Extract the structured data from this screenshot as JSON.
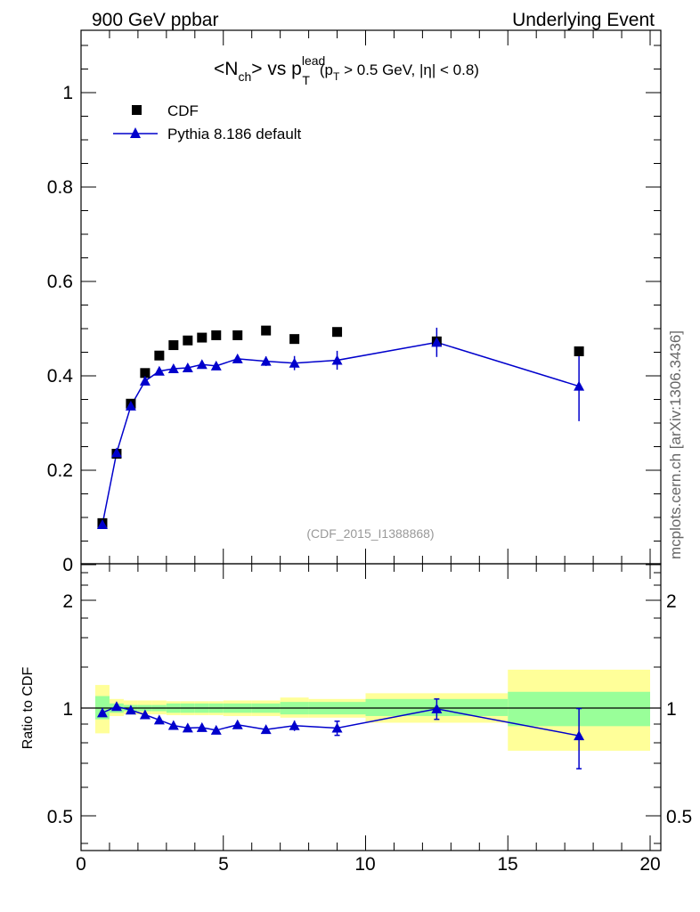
{
  "header": {
    "left": "900 GeV ppbar",
    "right": "Underlying Event",
    "side_label": "mcplots.cern.ch [arXiv:1306.3436]",
    "analysis_label": "(CDF_2015_I1388868)"
  },
  "colors": {
    "data": "#000000",
    "mc": "#0000cc",
    "band_inner": "#99ff99",
    "band_outer": "#ffff99"
  },
  "chart_data": [
    {
      "type": "scatter",
      "title_parts": {
        "lhs_pre": "<N",
        "lhs_sub": "ch",
        "lhs_post": "> vs p",
        "pt_sup": "lead",
        "pt_sub": "T",
        "cut_open": "(p",
        "cut_sub": "T",
        "cut_rest": " > 0.5 GeV, |η| < 0.8)"
      },
      "xlim": [
        0,
        20
      ],
      "ylim": [
        0,
        1.1
      ],
      "yticks": [
        "0",
        "0.2",
        "0.4",
        "0.6",
        "0.8",
        "1"
      ],
      "legend": {
        "placement": "top-left",
        "entries": [
          "CDF",
          "Pythia 8.186 default"
        ]
      },
      "series": [
        {
          "name": "CDF",
          "marker": "square",
          "points": [
            {
              "x": 0.75,
              "y": 0.088
            },
            {
              "x": 1.25,
              "y": 0.235
            },
            {
              "x": 1.75,
              "y": 0.341
            },
            {
              "x": 2.25,
              "y": 0.406
            },
            {
              "x": 2.75,
              "y": 0.443
            },
            {
              "x": 3.25,
              "y": 0.465
            },
            {
              "x": 3.75,
              "y": 0.475
            },
            {
              "x": 4.25,
              "y": 0.481
            },
            {
              "x": 4.75,
              "y": 0.486
            },
            {
              "x": 5.5,
              "y": 0.486
            },
            {
              "x": 6.5,
              "y": 0.496
            },
            {
              "x": 7.5,
              "y": 0.478
            },
            {
              "x": 9.0,
              "y": 0.493
            },
            {
              "x": 12.5,
              "y": 0.473
            },
            {
              "x": 17.5,
              "y": 0.452
            }
          ]
        },
        {
          "name": "Pythia 8.186 default",
          "marker": "triangle",
          "points": [
            {
              "x": 0.75,
              "y": 0.085,
              "err": 0.002
            },
            {
              "x": 1.25,
              "y": 0.237,
              "err": 0.002
            },
            {
              "x": 1.75,
              "y": 0.336,
              "err": 0.003
            },
            {
              "x": 2.25,
              "y": 0.389,
              "err": 0.004
            },
            {
              "x": 2.75,
              "y": 0.41,
              "err": 0.004
            },
            {
              "x": 3.25,
              "y": 0.415,
              "err": 0.005
            },
            {
              "x": 3.75,
              "y": 0.417,
              "err": 0.006
            },
            {
              "x": 4.25,
              "y": 0.424,
              "err": 0.006
            },
            {
              "x": 4.75,
              "y": 0.421,
              "err": 0.007
            },
            {
              "x": 5.5,
              "y": 0.436,
              "err": 0.007
            },
            {
              "x": 6.5,
              "y": 0.431,
              "err": 0.01
            },
            {
              "x": 7.5,
              "y": 0.427,
              "err": 0.015
            },
            {
              "x": 9.0,
              "y": 0.433,
              "err": 0.02
            },
            {
              "x": 12.5,
              "y": 0.471,
              "err": 0.031
            },
            {
              "x": 17.5,
              "y": 0.378,
              "err": 0.074
            }
          ]
        }
      ]
    },
    {
      "type": "scatter",
      "ylabel": "Ratio to CDF",
      "xlim": [
        0,
        20
      ],
      "ylim": [
        0.4,
        2.35
      ],
      "yscale": "log",
      "xticks": [
        "0",
        "5",
        "10",
        "15",
        "20"
      ],
      "yticks": [
        "0.5",
        "1",
        "2"
      ],
      "bands": [
        {
          "x0": 0.5,
          "x1": 1.0,
          "inner": [
            0.93,
            1.08
          ],
          "outer": [
            0.85,
            1.16
          ]
        },
        {
          "x0": 1.0,
          "x1": 1.5,
          "inner": [
            0.97,
            1.03
          ],
          "outer": [
            0.95,
            1.06
          ]
        },
        {
          "x0": 1.5,
          "x1": 2.0,
          "inner": [
            0.98,
            1.02
          ],
          "outer": [
            0.96,
            1.05
          ]
        },
        {
          "x0": 2.0,
          "x1": 2.5,
          "inner": [
            0.98,
            1.02
          ],
          "outer": [
            0.96,
            1.05
          ]
        },
        {
          "x0": 2.5,
          "x1": 3.0,
          "inner": [
            0.98,
            1.02
          ],
          "outer": [
            0.96,
            1.05
          ]
        },
        {
          "x0": 3.0,
          "x1": 3.5,
          "inner": [
            0.97,
            1.03
          ],
          "outer": [
            0.955,
            1.045
          ]
        },
        {
          "x0": 3.5,
          "x1": 4.0,
          "inner": [
            0.97,
            1.03
          ],
          "outer": [
            0.955,
            1.045
          ]
        },
        {
          "x0": 4.0,
          "x1": 4.5,
          "inner": [
            0.97,
            1.03
          ],
          "outer": [
            0.955,
            1.045
          ]
        },
        {
          "x0": 4.5,
          "x1": 5.0,
          "inner": [
            0.97,
            1.03
          ],
          "outer": [
            0.955,
            1.045
          ]
        },
        {
          "x0": 5.0,
          "x1": 6.0,
          "inner": [
            0.97,
            1.03
          ],
          "outer": [
            0.95,
            1.05
          ]
        },
        {
          "x0": 6.0,
          "x1": 7.0,
          "inner": [
            0.97,
            1.03
          ],
          "outer": [
            0.95,
            1.05
          ]
        },
        {
          "x0": 7.0,
          "x1": 8.0,
          "inner": [
            0.96,
            1.04
          ],
          "outer": [
            0.94,
            1.07
          ]
        },
        {
          "x0": 8.0,
          "x1": 10.0,
          "inner": [
            0.96,
            1.04
          ],
          "outer": [
            0.94,
            1.06
          ]
        },
        {
          "x0": 10.0,
          "x1": 15.0,
          "inner": [
            0.95,
            1.06
          ],
          "outer": [
            0.91,
            1.1
          ]
        },
        {
          "x0": 15.0,
          "x1": 20.0,
          "inner": [
            0.89,
            1.11
          ],
          "outer": [
            0.76,
            1.28
          ]
        }
      ],
      "series": [
        {
          "name": "Pythia 8.186 default",
          "marker": "triangle",
          "points": [
            {
              "x": 0.75,
              "y": 0.97,
              "err": 0.02
            },
            {
              "x": 1.25,
              "y": 1.01,
              "err": 0.01
            },
            {
              "x": 1.75,
              "y": 0.987,
              "err": 0.01
            },
            {
              "x": 2.25,
              "y": 0.958,
              "err": 0.01
            },
            {
              "x": 2.75,
              "y": 0.926,
              "err": 0.01
            },
            {
              "x": 3.25,
              "y": 0.894,
              "err": 0.01
            },
            {
              "x": 3.75,
              "y": 0.88,
              "err": 0.012
            },
            {
              "x": 4.25,
              "y": 0.882,
              "err": 0.012
            },
            {
              "x": 4.75,
              "y": 0.867,
              "err": 0.014
            },
            {
              "x": 5.5,
              "y": 0.898,
              "err": 0.015
            },
            {
              "x": 6.5,
              "y": 0.871,
              "err": 0.02
            },
            {
              "x": 7.5,
              "y": 0.893,
              "err": 0.03
            },
            {
              "x": 9.0,
              "y": 0.879,
              "err": 0.04
            },
            {
              "x": 12.5,
              "y": 0.995,
              "err": 0.065
            },
            {
              "x": 17.5,
              "y": 0.837,
              "err": 0.16
            }
          ]
        }
      ]
    }
  ]
}
